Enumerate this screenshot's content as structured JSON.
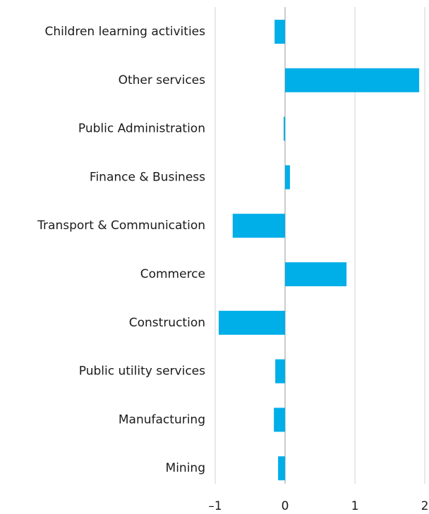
{
  "chart_data": {
    "type": "barh",
    "categories": [
      "Children learning activities",
      "Other services",
      "Public Administration",
      "Finance & Business",
      "Transport & Communication",
      "Commerce",
      "Construction",
      "Public utility services",
      "Manufacturing",
      "Mining"
    ],
    "values": [
      -0.15,
      1.92,
      -0.02,
      0.07,
      -0.75,
      0.88,
      -0.95,
      -0.14,
      -0.16,
      -0.1
    ],
    "color": "#00aee8",
    "xlim": [
      -1,
      2
    ],
    "xticks": [
      {
        "value": -1,
        "label": "–1"
      },
      0,
      1,
      2
    ],
    "grid": true
  }
}
